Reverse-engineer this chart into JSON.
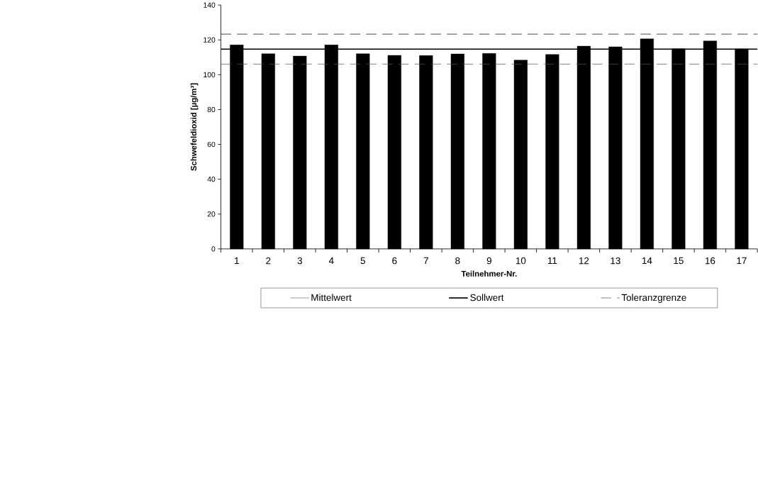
{
  "chart_data": {
    "type": "bar",
    "xlabel": "Teilnehmer-Nr.",
    "ylabel": "Schwefeldioxid [µg/m³]",
    "categories": [
      "1",
      "2",
      "3",
      "4",
      "5",
      "6",
      "7",
      "8",
      "9",
      "10",
      "11",
      "12",
      "13",
      "14",
      "15",
      "16",
      "17"
    ],
    "series": [
      {
        "name": "Mittelwert",
        "color": "#000000",
        "values": [
          117.1,
          112.0,
          110.7,
          117.1,
          112.0,
          111.1,
          111.0,
          111.9,
          112.2,
          108.4,
          111.6,
          116.4,
          116.0,
          120.6,
          114.9,
          119.4,
          114.8
        ]
      }
    ],
    "ylim": [
      0,
      140
    ],
    "yticks": [
      0,
      20,
      40,
      60,
      80,
      100,
      120,
      140
    ],
    "ref_lines": [
      {
        "axis": "y",
        "value": 114.7,
        "label": "Sollwert",
        "color": "#000000",
        "line_style": "solid"
      },
      {
        "axis": "y",
        "value": 106.1,
        "label": "Toleranzgrenze",
        "color": "#555555",
        "line_style": "dashed"
      },
      {
        "axis": "y",
        "value": 123.3,
        "color": "#000000",
        "line_style": "dashed"
      }
    ],
    "legend": "bottom"
  }
}
